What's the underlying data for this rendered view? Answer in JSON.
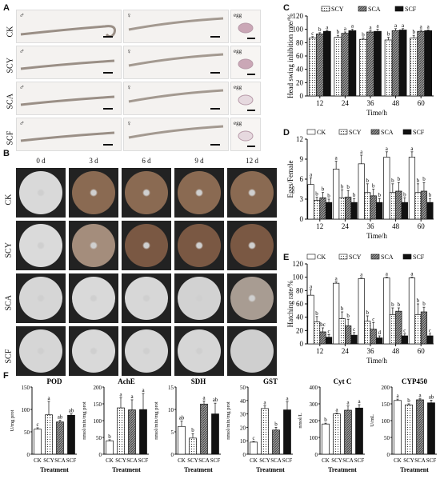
{
  "panels": {
    "A": "A",
    "B": "B",
    "C": "C",
    "D": "D",
    "E": "E",
    "F": "F"
  },
  "panelA": {
    "rows": [
      "CK",
      "SCY",
      "SCA",
      "SCF"
    ],
    "male_symbol": "♂",
    "female_symbol": "♀",
    "egg_label": "egg"
  },
  "panelB": {
    "days": [
      "0 d",
      "3 d",
      "6 d",
      "9 d",
      "12 d"
    ],
    "rows": [
      "CK",
      "SCY",
      "SCA",
      "SCF"
    ],
    "colors": {
      "CK": [
        "#d9d9d9",
        "#8a6a52",
        "#8a6a52",
        "#8a6a52",
        "#8a6a52"
      ],
      "SCY": [
        "#dadada",
        "#a48d7c",
        "#7a5843",
        "#7a5843",
        "#7a5843"
      ],
      "SCA": [
        "#d6d6d6",
        "#d9d9d9",
        "#d7d7d7",
        "#d2d2d2",
        "#a89c92"
      ],
      "SCF": [
        "#d6d6d6",
        "#d9d9d9",
        "#d7d7d7",
        "#d6d6d6",
        "#cfcfcf"
      ]
    }
  },
  "legend": [
    "SCY",
    "SCA",
    "SCF"
  ],
  "legend4": [
    "CK",
    "SCY",
    "SCA",
    "SCF"
  ],
  "chart_data": [
    {
      "id": "C",
      "type": "bar",
      "ylabel": "Head swing inhibition rate/%",
      "xlabel": "Time/h",
      "categories": [
        "12",
        "24",
        "36",
        "48",
        "60"
      ],
      "ylim": [
        0,
        120
      ],
      "yticks": [
        0,
        20,
        40,
        60,
        80,
        100,
        120
      ],
      "series": [
        {
          "name": "SCY",
          "values": [
            87,
            88,
            85,
            84,
            87
          ],
          "errors": [
            2,
            3,
            2,
            4,
            4
          ],
          "letters": [
            "c",
            "b",
            "b",
            "b",
            "b"
          ]
        },
        {
          "name": "SCA",
          "values": [
            93,
            94,
            96,
            98,
            97
          ],
          "errors": [
            2,
            2,
            2,
            3,
            2
          ],
          "letters": [
            "b",
            "a",
            "a",
            "a",
            "a"
          ]
        },
        {
          "name": "SCF",
          "values": [
            97,
            98,
            97,
            99,
            98
          ],
          "errors": [
            1,
            2,
            3,
            2,
            1
          ],
          "letters": [
            "a",
            "a",
            "a",
            "a",
            "a"
          ]
        }
      ]
    },
    {
      "id": "D",
      "type": "bar",
      "ylabel": "Eggs/Female",
      "xlabel": "Time/h",
      "categories": [
        "12",
        "24",
        "36",
        "48",
        "60"
      ],
      "ylim": [
        0,
        12
      ],
      "yticks": [
        0,
        3,
        6,
        9,
        12
      ],
      "series": [
        {
          "name": "CK",
          "values": [
            5.2,
            7.5,
            8.3,
            9.3,
            9.3
          ],
          "errors": [
            1.0,
            1.2,
            1.3,
            0.8,
            0.8
          ],
          "letters": [
            "a",
            "a",
            "a",
            "a",
            "a"
          ]
        },
        {
          "name": "SCY",
          "values": [
            2.8,
            3.2,
            4.0,
            4.0,
            4.0
          ],
          "errors": [
            0.5,
            1.2,
            1.3,
            1.3,
            1.3
          ],
          "letters": [
            "b",
            "b",
            "b",
            "b",
            "b"
          ]
        },
        {
          "name": "SCA",
          "values": [
            3.2,
            3.3,
            3.5,
            4.2,
            4.2
          ],
          "errors": [
            0.8,
            1.0,
            1.0,
            1.3,
            1.3
          ],
          "letters": [
            "b",
            "b",
            "b",
            "b",
            "b"
          ]
        },
        {
          "name": "SCF",
          "values": [
            2.5,
            2.5,
            2.5,
            2.5,
            2.5
          ],
          "errors": [
            0.5,
            0.6,
            0.6,
            0.7,
            0.6
          ],
          "letters": [
            "b",
            "b",
            "b",
            "b",
            "b"
          ]
        }
      ]
    },
    {
      "id": "E",
      "type": "bar",
      "ylabel": "Hatching rate/%",
      "xlabel": "Time/h",
      "categories": [
        "12",
        "24",
        "36",
        "48",
        "60"
      ],
      "ylim": [
        0,
        120
      ],
      "yticks": [
        0,
        20,
        40,
        60,
        80,
        100,
        120
      ],
      "series": [
        {
          "name": "CK",
          "values": [
            73,
            91,
            98,
            99,
            99
          ],
          "errors": [
            8,
            2,
            1,
            1,
            1
          ],
          "letters": [
            "a",
            "a",
            "a",
            "a",
            "a"
          ]
        },
        {
          "name": "SCY",
          "values": [
            33,
            38,
            34,
            44,
            44
          ],
          "errors": [
            8,
            10,
            8,
            10,
            16
          ],
          "letters": [
            "b",
            "b",
            "b",
            "b",
            "b"
          ]
        },
        {
          "name": "SCA",
          "values": [
            18,
            27,
            22,
            49,
            48
          ],
          "errors": [
            6,
            10,
            10,
            5,
            7
          ],
          "letters": [
            "bc",
            "b",
            "c",
            "b",
            "b"
          ]
        },
        {
          "name": "SCF",
          "values": [
            10,
            13,
            9,
            12,
            12
          ],
          "errors": [
            4,
            4,
            3,
            3,
            3
          ],
          "letters": [
            "c",
            "c",
            "d",
            "c",
            "c"
          ]
        }
      ]
    },
    {
      "id": "F1",
      "type": "bar",
      "title": "POD",
      "ylabel": "U/mg prot",
      "xlabel": "Treatment",
      "categories": [
        "CK",
        "SCY",
        "SCA",
        "SCF"
      ],
      "ylim": [
        0,
        150
      ],
      "yticks": [
        0,
        50,
        100,
        150
      ],
      "values": [
        56,
        88,
        72,
        87
      ],
      "errors": [
        3,
        30,
        4,
        3
      ],
      "letters": [
        "c",
        "a",
        "ab",
        "ab"
      ]
    },
    {
      "id": "F2",
      "type": "bar",
      "title": "AchE",
      "ylabel": "nmol/min/mg prot",
      "xlabel": "Treatment",
      "categories": [
        "CK",
        "SCY",
        "SCA",
        "SCF"
      ],
      "ylim": [
        0,
        200
      ],
      "yticks": [
        0,
        50,
        100,
        150,
        200
      ],
      "values": [
        40,
        138,
        132,
        133
      ],
      "errors": [
        3,
        30,
        30,
        48
      ],
      "letters": [
        "b",
        "a",
        "a",
        "a"
      ]
    },
    {
      "id": "F3",
      "type": "bar",
      "title": "SDH",
      "ylabel": "nmol/min/mg prot",
      "xlabel": "Treatment",
      "categories": [
        "CK",
        "SCY",
        "SCA",
        "SCF"
      ],
      "ylim": [
        0,
        15
      ],
      "yticks": [
        0,
        5,
        10,
        15
      ],
      "values": [
        6.2,
        3.6,
        11.2,
        9.0
      ],
      "errors": [
        1.2,
        1.0,
        0.7,
        2.4
      ],
      "letters": [
        "ab",
        "b",
        "a",
        "ab"
      ]
    },
    {
      "id": "F4",
      "type": "bar",
      "title": "GST",
      "ylabel": "nmol/min/mg prot",
      "xlabel": "Treatment",
      "categories": [
        "CK",
        "SCY",
        "SCA",
        "SCF"
      ],
      "ylim": [
        0,
        50
      ],
      "yticks": [
        0,
        10,
        20,
        30,
        40,
        50
      ],
      "values": [
        9,
        34,
        18,
        33
      ],
      "errors": [
        0.5,
        2,
        2,
        6
      ],
      "letters": [
        "c",
        "a",
        "b",
        "a"
      ]
    },
    {
      "id": "F5",
      "type": "bar",
      "title": "Cyt C",
      "ylabel": "nmol/L",
      "xlabel": "Treatment",
      "categories": [
        "CK",
        "SCY",
        "SCA",
        "SCF"
      ],
      "ylim": [
        0,
        400
      ],
      "yticks": [
        0,
        100,
        200,
        300,
        400
      ],
      "values": [
        180,
        240,
        262,
        275
      ],
      "errors": [
        5,
        5,
        25,
        20
      ],
      "letters": [
        "b",
        "a",
        "a",
        "a"
      ]
    },
    {
      "id": "F6",
      "type": "bar",
      "title": "CYP450",
      "ylabel": "U/mL",
      "xlabel": "Treatment",
      "categories": [
        "CK",
        "SCY",
        "SCA",
        "SCF"
      ],
      "ylim": [
        0,
        200
      ],
      "yticks": [
        0,
        50,
        100,
        150,
        200
      ],
      "values": [
        160,
        147,
        162,
        153
      ],
      "errors": [
        4,
        3,
        3,
        8
      ],
      "letters": [
        "a",
        "b",
        "a",
        "ab"
      ]
    }
  ]
}
